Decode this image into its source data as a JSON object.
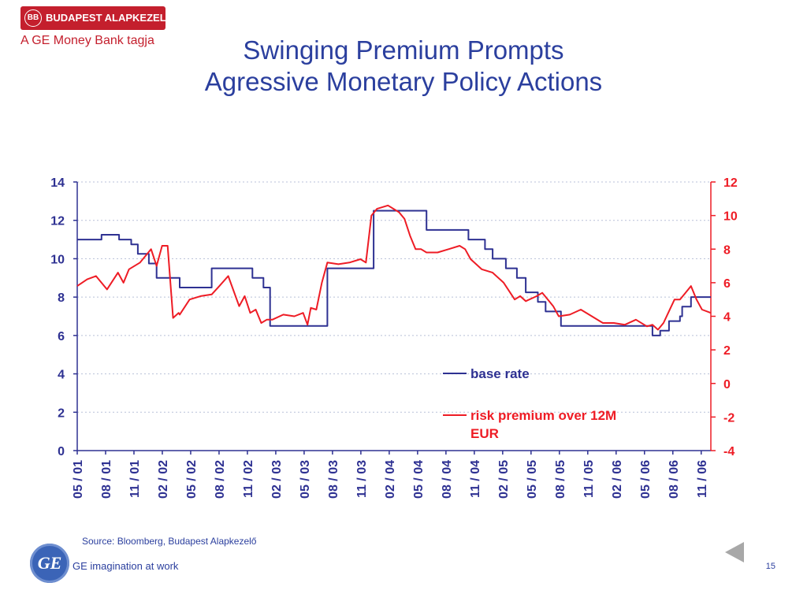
{
  "header": {
    "company": "BUDAPEST ALAPKEZELŐ",
    "monogram": "BB",
    "tagline": "A GE Money Bank tagja",
    "title_line1": "Swinging Premium Prompts",
    "title_line2": "Agressive Monetary Policy Actions"
  },
  "footer": {
    "source": "Source: Bloomberg, Budapest Alapkezelő",
    "ge_monogram": "GE",
    "ge_tagline": "GE imagination at work",
    "page_number": "15"
  },
  "colors": {
    "base_rate": "#2e3192",
    "risk_premium": "#ee1c25",
    "title": "#2b3f9e",
    "brand_red": "#c41f2d",
    "gridline": "#b8c0d8"
  },
  "chart_data": {
    "type": "line",
    "title": "",
    "x_tick_labels": [
      "05 / 01",
      "08 / 01",
      "11 / 01",
      "02 / 02",
      "05 / 02",
      "08 / 02",
      "11 / 02",
      "02 / 03",
      "05 / 03",
      "08 / 03",
      "11 / 03",
      "02 / 04",
      "05 / 04",
      "08 / 04",
      "11 / 04",
      "02 / 05",
      "05 / 05",
      "08 / 05",
      "11 / 05",
      "02 / 06",
      "05 / 06",
      "08 / 06",
      "11 / 06"
    ],
    "x_range": [
      2001.33,
      2007.08
    ],
    "y_left": {
      "range": [
        0,
        14
      ],
      "ticks": [
        "0",
        "2",
        "4",
        "6",
        "8",
        "10",
        "12",
        "14"
      ]
    },
    "y_right": {
      "range": [
        -4,
        12
      ],
      "ticks": [
        "-4",
        "-2",
        "0",
        "2",
        "4",
        "6",
        "8",
        "10",
        "12"
      ]
    },
    "grid": "horizontal dashed",
    "legend_position": "center-right",
    "series": [
      {
        "name": "base rate",
        "axis": "left",
        "step": true,
        "x": [
          2001.33,
          2001.55,
          2001.71,
          2001.82,
          2001.88,
          2001.98,
          2002.05,
          2002.15,
          2002.26,
          2002.38,
          2002.55,
          2002.92,
          2003.02,
          2003.08,
          2003.45,
          2003.5,
          2003.6,
          2003.96,
          2004.02,
          2004.35,
          2004.5,
          2004.71,
          2004.88,
          2004.95,
          2005.03,
          2005.1,
          2005.22,
          2005.32,
          2005.4,
          2005.51,
          2005.58,
          2005.72,
          2006.55,
          2006.62,
          2006.7,
          2006.8,
          2006.82,
          2006.9,
          2007.08
        ],
        "values": [
          11,
          11.25,
          11,
          10.75,
          10.25,
          9.75,
          9.0,
          9.0,
          8.5,
          8.5,
          9.5,
          9.0,
          8.5,
          6.5,
          6.5,
          6.5,
          9.5,
          9.5,
          12.5,
          12.5,
          11.5,
          11.5,
          11.0,
          11.0,
          10.5,
          10.0,
          9.5,
          9.0,
          8.25,
          7.75,
          7.25,
          6.5,
          6.0,
          6.25,
          6.75,
          7.0,
          7.5,
          8.0,
          8.0
        ]
      },
      {
        "name": "risk premium over 12M EUR",
        "axis": "right",
        "step": false,
        "x": [
          2001.33,
          2001.42,
          2001.5,
          2001.6,
          2001.7,
          2001.75,
          2001.8,
          2001.9,
          2002.0,
          2002.05,
          2002.1,
          2002.15,
          2002.2,
          2002.25,
          2002.26,
          2002.35,
          2002.45,
          2002.55,
          2002.62,
          2002.7,
          2002.8,
          2002.85,
          2002.9,
          2002.95,
          2003.0,
          2003.05,
          2003.1,
          2003.2,
          2003.3,
          2003.38,
          2003.42,
          2003.45,
          2003.5,
          2003.55,
          2003.6,
          2003.7,
          2003.8,
          2003.9,
          2003.95,
          2004.0,
          2004.05,
          2004.15,
          2004.25,
          2004.3,
          2004.35,
          2004.4,
          2004.45,
          2004.5,
          2004.6,
          2004.7,
          2004.8,
          2004.85,
          2004.9,
          2005.0,
          2005.1,
          2005.2,
          2005.3,
          2005.35,
          2005.4,
          2005.5,
          2005.55,
          2005.6,
          2005.65,
          2005.7,
          2005.8,
          2005.9,
          2006.0,
          2006.1,
          2006.2,
          2006.3,
          2006.4,
          2006.5,
          2006.55,
          2006.6,
          2006.65,
          2006.7,
          2006.75,
          2006.8,
          2006.85,
          2006.9,
          2006.95,
          2007.0,
          2007.08
        ],
        "values": [
          5.8,
          6.2,
          6.4,
          5.6,
          6.6,
          6.0,
          6.8,
          7.2,
          8.0,
          7.0,
          8.2,
          8.2,
          3.9,
          4.2,
          4.1,
          5.0,
          5.2,
          5.3,
          5.8,
          6.4,
          4.6,
          5.2,
          4.2,
          4.4,
          3.6,
          3.8,
          3.8,
          4.1,
          4.0,
          4.2,
          3.5,
          4.5,
          4.4,
          6.0,
          7.2,
          7.1,
          7.2,
          7.4,
          7.2,
          10.0,
          10.4,
          10.6,
          10.2,
          9.8,
          8.8,
          8.0,
          8.0,
          7.8,
          7.8,
          8.0,
          8.2,
          8.0,
          7.4,
          6.8,
          6.6,
          6.0,
          5.0,
          5.2,
          4.9,
          5.2,
          5.4,
          5.0,
          4.6,
          4.0,
          4.1,
          4.4,
          4.0,
          3.6,
          3.6,
          3.5,
          3.8,
          3.4,
          3.5,
          3.2,
          3.6,
          4.3,
          5.0,
          5.0,
          5.4,
          5.8,
          5.0,
          4.4,
          4.2
        ]
      }
    ]
  }
}
